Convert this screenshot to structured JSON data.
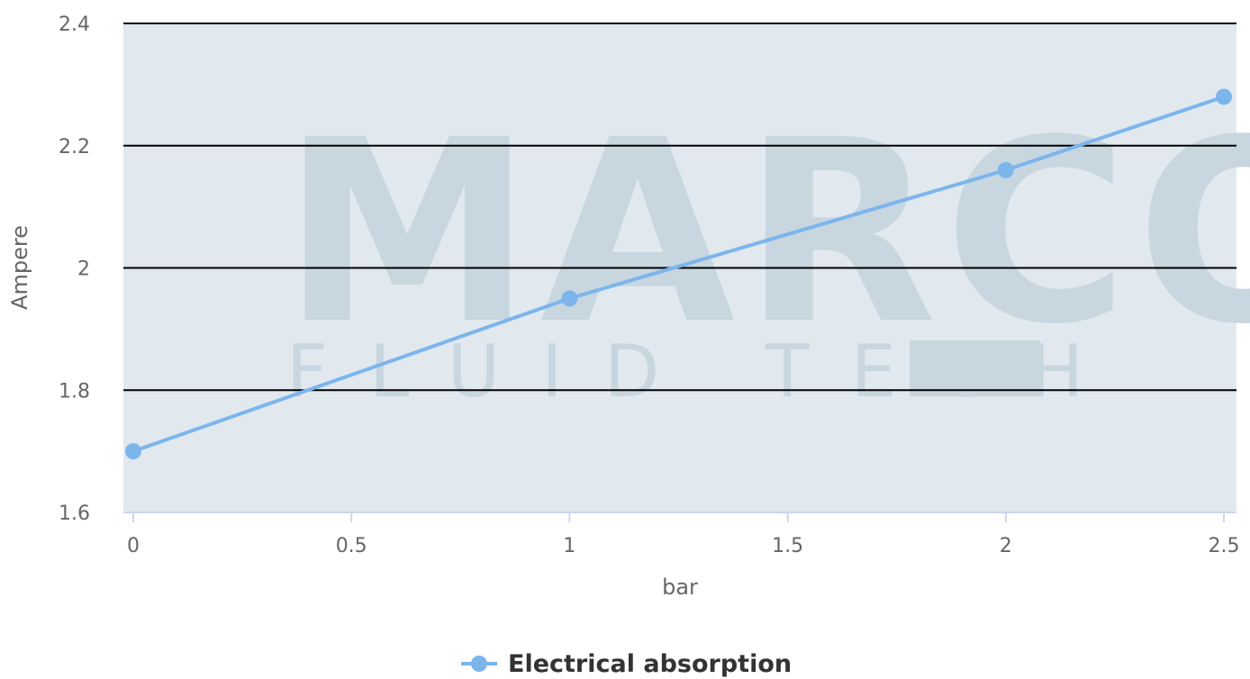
{
  "chart_data": {
    "type": "line",
    "xlabel": "bar",
    "ylabel": "Ampere",
    "xlim": [
      0,
      2.5
    ],
    "ylim": [
      1.6,
      2.4
    ],
    "x_ticks": [
      "0",
      "0.5",
      "1",
      "1.5",
      "2",
      "2.5"
    ],
    "y_ticks": [
      "1.6",
      "1.8",
      "2",
      "2.2",
      "2.4"
    ],
    "grid": true,
    "legend": "bottom-center",
    "series": [
      {
        "name": "Electrical absorption",
        "color": "#7cb5ec",
        "x": [
          0,
          1,
          2,
          2.5
        ],
        "y": [
          1.7,
          1.95,
          2.16,
          2.28
        ]
      }
    ]
  },
  "watermark": {
    "brand": "MARCO",
    "tagline": "FLUID TECH",
    "mark": "®"
  }
}
